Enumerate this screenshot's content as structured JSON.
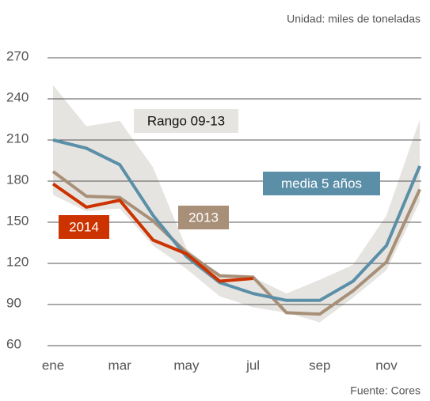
{
  "chart_data": {
    "type": "line",
    "subtitle": "Unidad: miles de toneladas",
    "source": "Fuente: Cores",
    "categories": [
      "ene",
      null,
      "mar",
      null,
      "may",
      null,
      "jul",
      null,
      "sep",
      null,
      "nov",
      null
    ],
    "ylim": [
      60,
      270
    ],
    "yticks": [
      60,
      90,
      120,
      150,
      180,
      210,
      240,
      270
    ],
    "grid": true,
    "range": {
      "name": "Rango 09-13",
      "color": "#e6e4e0",
      "upper": [
        250,
        220,
        224,
        190,
        131,
        110,
        110,
        98,
        108,
        119,
        155,
        225
      ],
      "lower": [
        170,
        158,
        160,
        133,
        116,
        96,
        88,
        84,
        77,
        95,
        115,
        165
      ]
    },
    "series": [
      {
        "name": "media 5 años",
        "color": "#5b8fa8",
        "values": [
          210,
          204,
          192,
          155,
          125,
          106,
          98,
          93,
          93,
          107,
          133,
          191
        ]
      },
      {
        "name": "2013",
        "color": "#a89078",
        "values": [
          187,
          169,
          168,
          151,
          128,
          111,
          110,
          84,
          83,
          100,
          121,
          174
        ]
      },
      {
        "name": "2014",
        "color": "#cc3300",
        "values": [
          178,
          161,
          166,
          137,
          127,
          107,
          109,
          null,
          null,
          null,
          null,
          null
        ]
      }
    ]
  }
}
